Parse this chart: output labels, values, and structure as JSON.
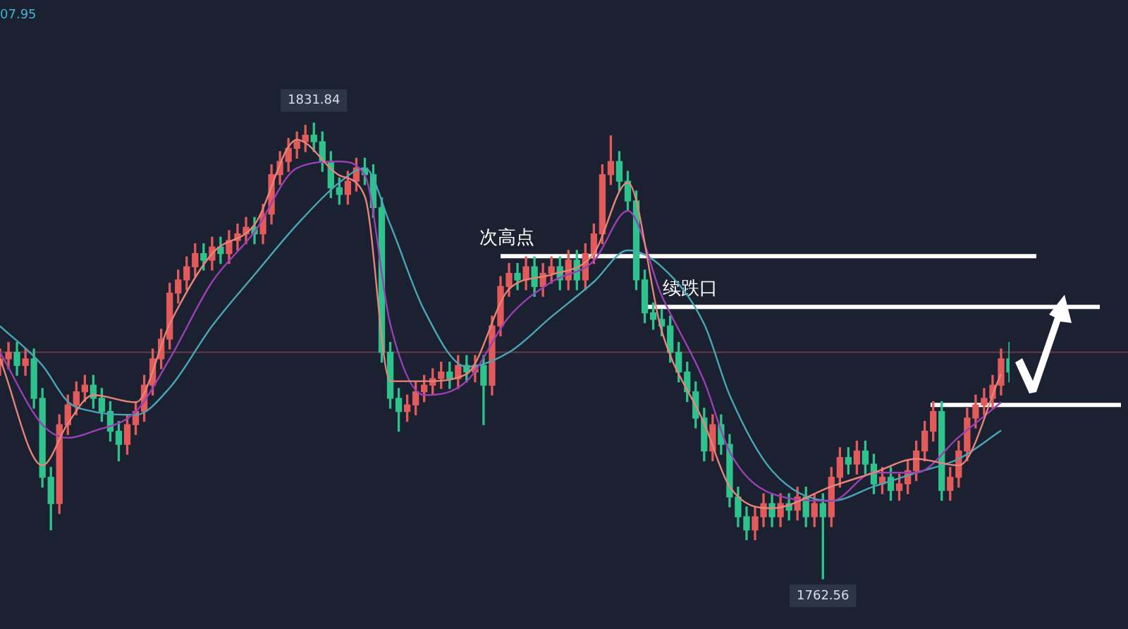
{
  "chart_data": {
    "type": "candlestick",
    "categories": [
      null,
      null,
      null,
      null,
      null,
      null,
      null,
      null,
      null,
      null,
      null,
      null,
      null,
      null,
      null,
      null,
      null,
      null,
      null,
      null,
      null,
      null,
      null,
      null,
      null,
      null,
      null,
      null,
      null,
      null,
      null,
      null,
      null,
      null,
      null,
      null,
      null,
      null,
      null,
      null,
      null,
      null,
      null,
      null,
      null,
      null,
      null,
      null,
      null,
      null,
      null,
      null,
      null,
      null,
      null,
      null,
      null,
      null,
      null,
      null,
      null,
      null,
      null,
      null,
      null,
      null,
      null,
      null,
      null,
      null,
      null,
      null,
      null,
      null,
      null,
      null,
      null,
      null,
      null,
      null,
      null,
      null,
      null,
      null,
      null,
      null,
      null,
      null,
      null,
      null,
      null,
      null,
      null,
      null,
      null,
      null,
      null,
      null,
      null,
      null,
      null,
      null,
      null,
      null,
      null,
      null,
      null,
      null,
      null,
      null,
      null,
      null,
      null,
      null,
      null,
      null,
      null,
      null,
      null,
      null
    ],
    "ohlc": [
      [
        1795,
        1797.5,
        1793.5,
        1796
      ],
      [
        1796,
        1798.5,
        1794.5,
        1797
      ],
      [
        1797,
        1798.5,
        1793.5,
        1795
      ],
      [
        1795,
        1797.5,
        1793.5,
        1796
      ],
      [
        1796,
        1797.5,
        1788.5,
        1790
      ],
      [
        1790,
        1791.5,
        1776.5,
        1778
      ],
      [
        1778,
        1779.5,
        1770,
        1774
      ],
      [
        1774,
        1787.5,
        1772.5,
        1786
      ],
      [
        1786,
        1790.5,
        1784.5,
        1789
      ],
      [
        1789,
        1792.5,
        1787.5,
        1791
      ],
      [
        1791,
        1793.5,
        1789.5,
        1792
      ],
      [
        1792,
        1793.5,
        1788.5,
        1790
      ],
      [
        1790,
        1791.5,
        1786.5,
        1788
      ],
      [
        1788,
        1789.5,
        1783.5,
        1785
      ],
      [
        1785,
        1786.5,
        1780.5,
        1783
      ],
      [
        1783,
        1787.5,
        1781.5,
        1786
      ],
      [
        1786,
        1789.5,
        1784.5,
        1788
      ],
      [
        1788,
        1793.5,
        1786.5,
        1792
      ],
      [
        1792,
        1797.5,
        1790.5,
        1796
      ],
      [
        1796,
        1800.5,
        1794.5,
        1799
      ],
      [
        1799,
        1807.5,
        1797.5,
        1806
      ],
      [
        1806,
        1809.5,
        1804.5,
        1808
      ],
      [
        1808,
        1811.5,
        1806.5,
        1810
      ],
      [
        1810,
        1813.5,
        1808.5,
        1812
      ],
      [
        1812,
        1813.5,
        1809.5,
        1811
      ],
      [
        1811,
        1814.5,
        1809.5,
        1813
      ],
      [
        1813,
        1814.5,
        1810.5,
        1812
      ],
      [
        1812,
        1815.5,
        1810.5,
        1814
      ],
      [
        1814,
        1816.5,
        1812.5,
        1815
      ],
      [
        1815,
        1817.5,
        1813.5,
        1816
      ],
      [
        1816,
        1817.5,
        1813.5,
        1815
      ],
      [
        1815,
        1819.5,
        1813.5,
        1818
      ],
      [
        1818,
        1825.5,
        1816.5,
        1824
      ],
      [
        1824,
        1827.5,
        1822.5,
        1826
      ],
      [
        1826,
        1829.5,
        1824.5,
        1828
      ],
      [
        1828,
        1830.5,
        1826.5,
        1829
      ],
      [
        1829,
        1831.5,
        1827.5,
        1830
      ],
      [
        1830,
        1831.84,
        1827.5,
        1829
      ],
      [
        1829,
        1830.5,
        1824.5,
        1826
      ],
      [
        1826,
        1827.5,
        1820.5,
        1822
      ],
      [
        1822,
        1823.5,
        1819.5,
        1821
      ],
      [
        1821,
        1824.5,
        1819.5,
        1823
      ],
      [
        1823,
        1826.5,
        1821.5,
        1825
      ],
      [
        1825,
        1826.5,
        1822.5,
        1824
      ],
      [
        1824,
        1825.5,
        1817.5,
        1819
      ],
      [
        1819,
        1820.5,
        1795.5,
        1797
      ],
      [
        1797,
        1798.5,
        1788.5,
        1790
      ],
      [
        1790,
        1791.5,
        1785,
        1788
      ],
      [
        1788,
        1790.5,
        1786.5,
        1789
      ],
      [
        1789,
        1792.5,
        1787.5,
        1791
      ],
      [
        1791,
        1793.5,
        1789.5,
        1792
      ],
      [
        1792,
        1794.5,
        1790.5,
        1793
      ],
      [
        1793,
        1795.5,
        1791.5,
        1794
      ],
      [
        1794,
        1795.5,
        1791.5,
        1793
      ],
      [
        1793,
        1796.5,
        1791.5,
        1795
      ],
      [
        1795,
        1796.5,
        1792.5,
        1794
      ],
      [
        1794,
        1796.5,
        1792.5,
        1795
      ],
      [
        1795,
        1796.5,
        1786,
        1792
      ],
      [
        1792,
        1802.5,
        1790.5,
        1801
      ],
      [
        1801,
        1808.5,
        1799.5,
        1807
      ],
      [
        1807,
        1810.5,
        1805.5,
        1809
      ],
      [
        1809,
        1810.5,
        1806.5,
        1808
      ],
      [
        1808,
        1811.5,
        1806.5,
        1810
      ],
      [
        1810,
        1811.5,
        1805.5,
        1807
      ],
      [
        1807,
        1810.5,
        1805.5,
        1809
      ],
      [
        1809,
        1811.5,
        1807.5,
        1810
      ],
      [
        1810,
        1811.5,
        1806.5,
        1808
      ],
      [
        1808,
        1812.5,
        1806.5,
        1811
      ],
      [
        1811,
        1812.5,
        1806.5,
        1808
      ],
      [
        1808,
        1813.5,
        1806.5,
        1812
      ],
      [
        1812,
        1816.5,
        1810.5,
        1815
      ],
      [
        1815,
        1825.5,
        1813.5,
        1824
      ],
      [
        1824,
        1829.9,
        1822.5,
        1826
      ],
      [
        1826,
        1827.5,
        1821.5,
        1823
      ],
      [
        1823,
        1824.5,
        1818.5,
        1820
      ],
      [
        1820,
        1821.5,
        1806.5,
        1808
      ],
      [
        1808,
        1809.5,
        1801.5,
        1803
      ],
      [
        1803,
        1804.5,
        1800.5,
        1802
      ],
      [
        1802,
        1803.5,
        1799.5,
        1801
      ],
      [
        1801,
        1802.5,
        1795.5,
        1797
      ],
      [
        1797,
        1798.5,
        1792.5,
        1794
      ],
      [
        1794,
        1795.5,
        1789.5,
        1791
      ],
      [
        1791,
        1792.5,
        1785.5,
        1787
      ],
      [
        1787,
        1788.5,
        1780.5,
        1782
      ],
      [
        1782,
        1787.5,
        1780.5,
        1786
      ],
      [
        1786,
        1787.5,
        1781.5,
        1783
      ],
      [
        1783,
        1784.5,
        1773.5,
        1775
      ],
      [
        1775,
        1776.5,
        1770.5,
        1772
      ],
      [
        1772,
        1773.5,
        1768.5,
        1770
      ],
      [
        1770,
        1773.5,
        1768.5,
        1772
      ],
      [
        1772,
        1775.5,
        1770.5,
        1774
      ],
      [
        1774,
        1775.5,
        1770.5,
        1772
      ],
      [
        1772,
        1775.5,
        1770.5,
        1774
      ],
      [
        1774,
        1775.5,
        1771.5,
        1773
      ],
      [
        1773,
        1776.5,
        1771.5,
        1775
      ],
      [
        1775,
        1776.5,
        1770.5,
        1772
      ],
      [
        1772,
        1775.5,
        1770.5,
        1774
      ],
      [
        1774,
        1775.5,
        1762.56,
        1772
      ],
      [
        1772,
        1779.5,
        1770.5,
        1778
      ],
      [
        1778,
        1782.5,
        1776.5,
        1781
      ],
      [
        1781,
        1782.5,
        1778.5,
        1780
      ],
      [
        1780,
        1783.5,
        1778.5,
        1782
      ],
      [
        1782,
        1783.5,
        1778.5,
        1780
      ],
      [
        1780,
        1781.5,
        1775.5,
        1777
      ],
      [
        1777,
        1779.5,
        1775.5,
        1778
      ],
      [
        1778,
        1779.5,
        1774.5,
        1776
      ],
      [
        1776,
        1778.5,
        1774.5,
        1777
      ],
      [
        1777,
        1780.5,
        1775.5,
        1779
      ],
      [
        1779,
        1783.5,
        1777.5,
        1782
      ],
      [
        1782,
        1786.5,
        1780.5,
        1785
      ],
      [
        1785,
        1789.5,
        1783.5,
        1788
      ],
      [
        1788,
        1789.5,
        1774.5,
        1776
      ],
      [
        1776,
        1779.5,
        1774.5,
        1778
      ],
      [
        1778,
        1783.5,
        1776.5,
        1782
      ],
      [
        1782,
        1788.5,
        1780.5,
        1787
      ],
      [
        1787,
        1790.5,
        1785.5,
        1789
      ],
      [
        1789,
        1791.5,
        1787.5,
        1790
      ],
      [
        1790,
        1793.5,
        1788.5,
        1792
      ],
      [
        1792,
        1797.5,
        1790.5,
        1796
      ],
      [
        1796,
        1798.5,
        1792.5,
        1794
      ]
    ],
    "series": [
      {
        "type": "line",
        "color": "#e8857a",
        "values": [
          1796,
          null,
          null,
          null,
          null,
          1779.8,
          null,
          null,
          1786.2,
          null,
          null,
          1790.5,
          null,
          null,
          null,
          null,
          1789.4,
          null,
          null,
          null,
          1801.3,
          null,
          null,
          null,
          null,
          1812,
          null,
          null,
          null,
          null,
          1816.4,
          null,
          null,
          null,
          null,
          1829.3,
          null,
          null,
          null,
          null,
          1823.9,
          null,
          null,
          1820.7,
          null,
          null,
          1792.6,
          null,
          null,
          null,
          1792.6,
          null,
          null,
          null,
          null,
          1793.7,
          null,
          null,
          null,
          null,
          1806.6,
          null,
          null,
          null,
          null,
          1808.8,
          null,
          null,
          null,
          null,
          1812,
          null,
          null,
          null,
          1822.8,
          null,
          null,
          null,
          1800.2,
          null,
          null,
          null,
          null,
          1786.2,
          null,
          null,
          1776.6,
          null,
          null,
          null,
          null,
          1773.3,
          null,
          null,
          null,
          null,
          null,
          null,
          1776.6,
          null,
          null,
          null,
          null,
          1778.7,
          null,
          null,
          null,
          null,
          1780.8,
          null,
          null,
          null,
          null,
          1779.8,
          null,
          null,
          null,
          null,
          1793.7,
          null
        ]
      },
      {
        "type": "line",
        "color": "#9b3fb5",
        "values": [
          1797,
          null,
          null,
          null,
          null,
          1786,
          null,
          null,
          1784,
          null,
          null,
          1785,
          null,
          null,
          null,
          null,
          1788,
          null,
          null,
          null,
          1796,
          null,
          null,
          null,
          null,
          1807.7,
          null,
          null,
          null,
          null,
          1815.3,
          null,
          null,
          null,
          null,
          1825,
          null,
          null,
          null,
          null,
          1826,
          null,
          null,
          1823.9,
          null,
          null,
          1801.3,
          null,
          null,
          null,
          1790.5,
          null,
          null,
          null,
          null,
          1792.6,
          null,
          null,
          null,
          null,
          1802.4,
          null,
          null,
          null,
          null,
          1807.7,
          null,
          null,
          null,
          null,
          1810.9,
          null,
          null,
          null,
          1818.5,
          null,
          null,
          null,
          1805.6,
          null,
          null,
          null,
          null,
          1792.6,
          null,
          null,
          1781.9,
          null,
          null,
          null,
          null,
          1775.5,
          null,
          null,
          null,
          null,
          null,
          null,
          1774.4,
          null,
          null,
          null,
          null,
          1778.7,
          null,
          null,
          null,
          null,
          1778.7,
          null,
          null,
          null,
          null,
          1784.1,
          null,
          null,
          null,
          null,
          1789.4,
          null
        ]
      },
      {
        "type": "line",
        "color": "#4aa6b5",
        "values": [
          1801,
          null,
          null,
          null,
          null,
          1795,
          null,
          null,
          1789.5,
          null,
          null,
          1788,
          null,
          null,
          null,
          null,
          1787.5,
          null,
          null,
          null,
          1791.6,
          null,
          null,
          null,
          null,
          1801,
          null,
          null,
          null,
          null,
          1808.8,
          null,
          null,
          null,
          null,
          1816.4,
          null,
          null,
          null,
          null,
          1822.8,
          null,
          null,
          1825,
          null,
          null,
          1816.4,
          null,
          null,
          null,
          1803.4,
          null,
          null,
          null,
          null,
          1794.8,
          null,
          null,
          null,
          null,
          1797,
          null,
          null,
          null,
          null,
          1802.4,
          null,
          null,
          null,
          null,
          1807.7,
          null,
          null,
          null,
          1812.5,
          null,
          null,
          null,
          1810,
          null,
          null,
          null,
          null,
          1801.3,
          null,
          null,
          1790.5,
          null,
          null,
          null,
          null,
          1779,
          null,
          null,
          null,
          null,
          null,
          null,
          1774.4,
          null,
          null,
          null,
          null,
          1776.6,
          null,
          null,
          null,
          null,
          1778.7,
          null,
          null,
          null,
          null,
          1780.8,
          null,
          null,
          null,
          null,
          1785.1,
          null
        ]
      }
    ],
    "ref_lines": [
      {
        "axis": "y",
        "value": 1811.6,
        "label": "次高点",
        "color": "#ffffff"
      },
      {
        "axis": "y",
        "value": 1803.9,
        "label": "续跌口",
        "color": "#ffffff"
      },
      {
        "axis": "y",
        "value": 1789,
        "color": "#ffffff"
      },
      {
        "axis": "y",
        "value": 1797,
        "color": "#6b3a4a"
      }
    ],
    "annotations": [
      "07.95",
      {
        "text": "1831.84",
        "y": 1831.84
      },
      {
        "text": "1762.56",
        "y": 1762.56
      }
    ]
  }
}
